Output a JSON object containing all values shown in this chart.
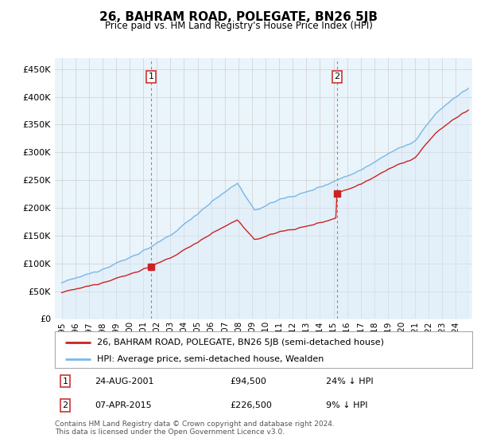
{
  "title": "26, BAHRAM ROAD, POLEGATE, BN26 5JB",
  "subtitle": "Price paid vs. HM Land Registry's House Price Index (HPI)",
  "legend_line1": "26, BAHRAM ROAD, POLEGATE, BN26 5JB (semi-detached house)",
  "legend_line2": "HPI: Average price, semi-detached house, Wealden",
  "annotation1_date": "24-AUG-2001",
  "annotation1_price": 94500,
  "annotation1_price_str": "£94,500",
  "annotation1_pct": "24% ↓ HPI",
  "annotation2_date": "07-APR-2015",
  "annotation2_price": 226500,
  "annotation2_price_str": "£226,500",
  "annotation2_pct": "9% ↓ HPI",
  "footnote1": "Contains HM Land Registry data © Crown copyright and database right 2024.",
  "footnote2": "This data is licensed under the Open Government Licence v3.0.",
  "hpi_color": "#7ab8e8",
  "hpi_fill_color": "#daeaf7",
  "price_color": "#cc2222",
  "vline_color": "#dd6666",
  "background_color": "#ffffff",
  "grid_color": "#cccccc",
  "ylim": [
    0,
    470000
  ],
  "yticks": [
    0,
    50000,
    100000,
    150000,
    200000,
    250000,
    300000,
    350000,
    400000,
    450000
  ],
  "anno_box_color": "#cc3333"
}
